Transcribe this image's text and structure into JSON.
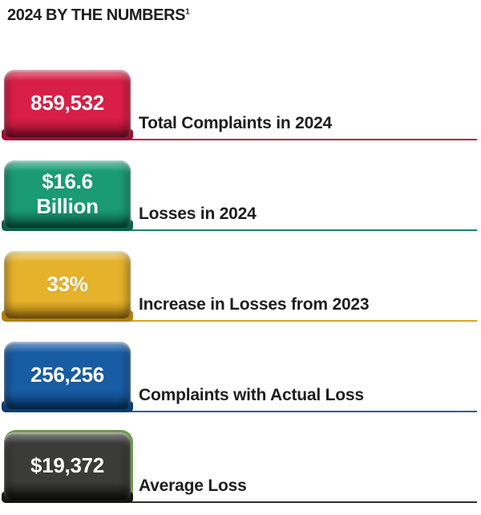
{
  "page": {
    "title": "2024 BY THE NUMBERS",
    "title_superscript": "1",
    "background_color": "#ffffff",
    "text_color": "#1e1e1e"
  },
  "stats": [
    {
      "value": "859,532",
      "label": "Total Complaints in 2024",
      "colors": {
        "face": "#d91f47",
        "light": "#ea5a76",
        "dark": "#9a0f33",
        "line": "#b52346"
      }
    },
    {
      "value": "$16.6\nBillion",
      "label": "Losses in 2024",
      "colors": {
        "face": "#1a9b74",
        "light": "#52c2a2",
        "dark": "#0a614a",
        "line": "#1f8168"
      }
    },
    {
      "value": "33%",
      "label": "Increase in Losses from 2023",
      "colors": {
        "face": "#e6b22c",
        "light": "#f4d677",
        "dark": "#b07f12",
        "line": "#d5a61e"
      }
    },
    {
      "value": "256,256",
      "label": "Complaints with Actual Loss",
      "colors": {
        "face": "#185ca4",
        "light": "#4f87c2",
        "dark": "#093c70",
        "line": "#27619f"
      }
    },
    {
      "value": "$19,372",
      "label": "Average Loss",
      "colors": {
        "face": "#3b3b39",
        "light": "#67675f",
        "dark": "#151514",
        "line": "#30302e",
        "rim": "#6b9e44"
      }
    }
  ],
  "chart_data": {
    "type": "table",
    "title": "2024 BY THE NUMBERS",
    "categories": [
      "Total Complaints in 2024",
      "Losses in 2024",
      "Increase in Losses from 2023",
      "Complaints with Actual Loss",
      "Average Loss"
    ],
    "values": [
      "859,532",
      "$16.6 Billion",
      "33%",
      "256,256",
      "$19,372"
    ],
    "notes": "Infographic of five key 2024 statistics, each shown on a colored 3D badge with a matching underline rule"
  }
}
